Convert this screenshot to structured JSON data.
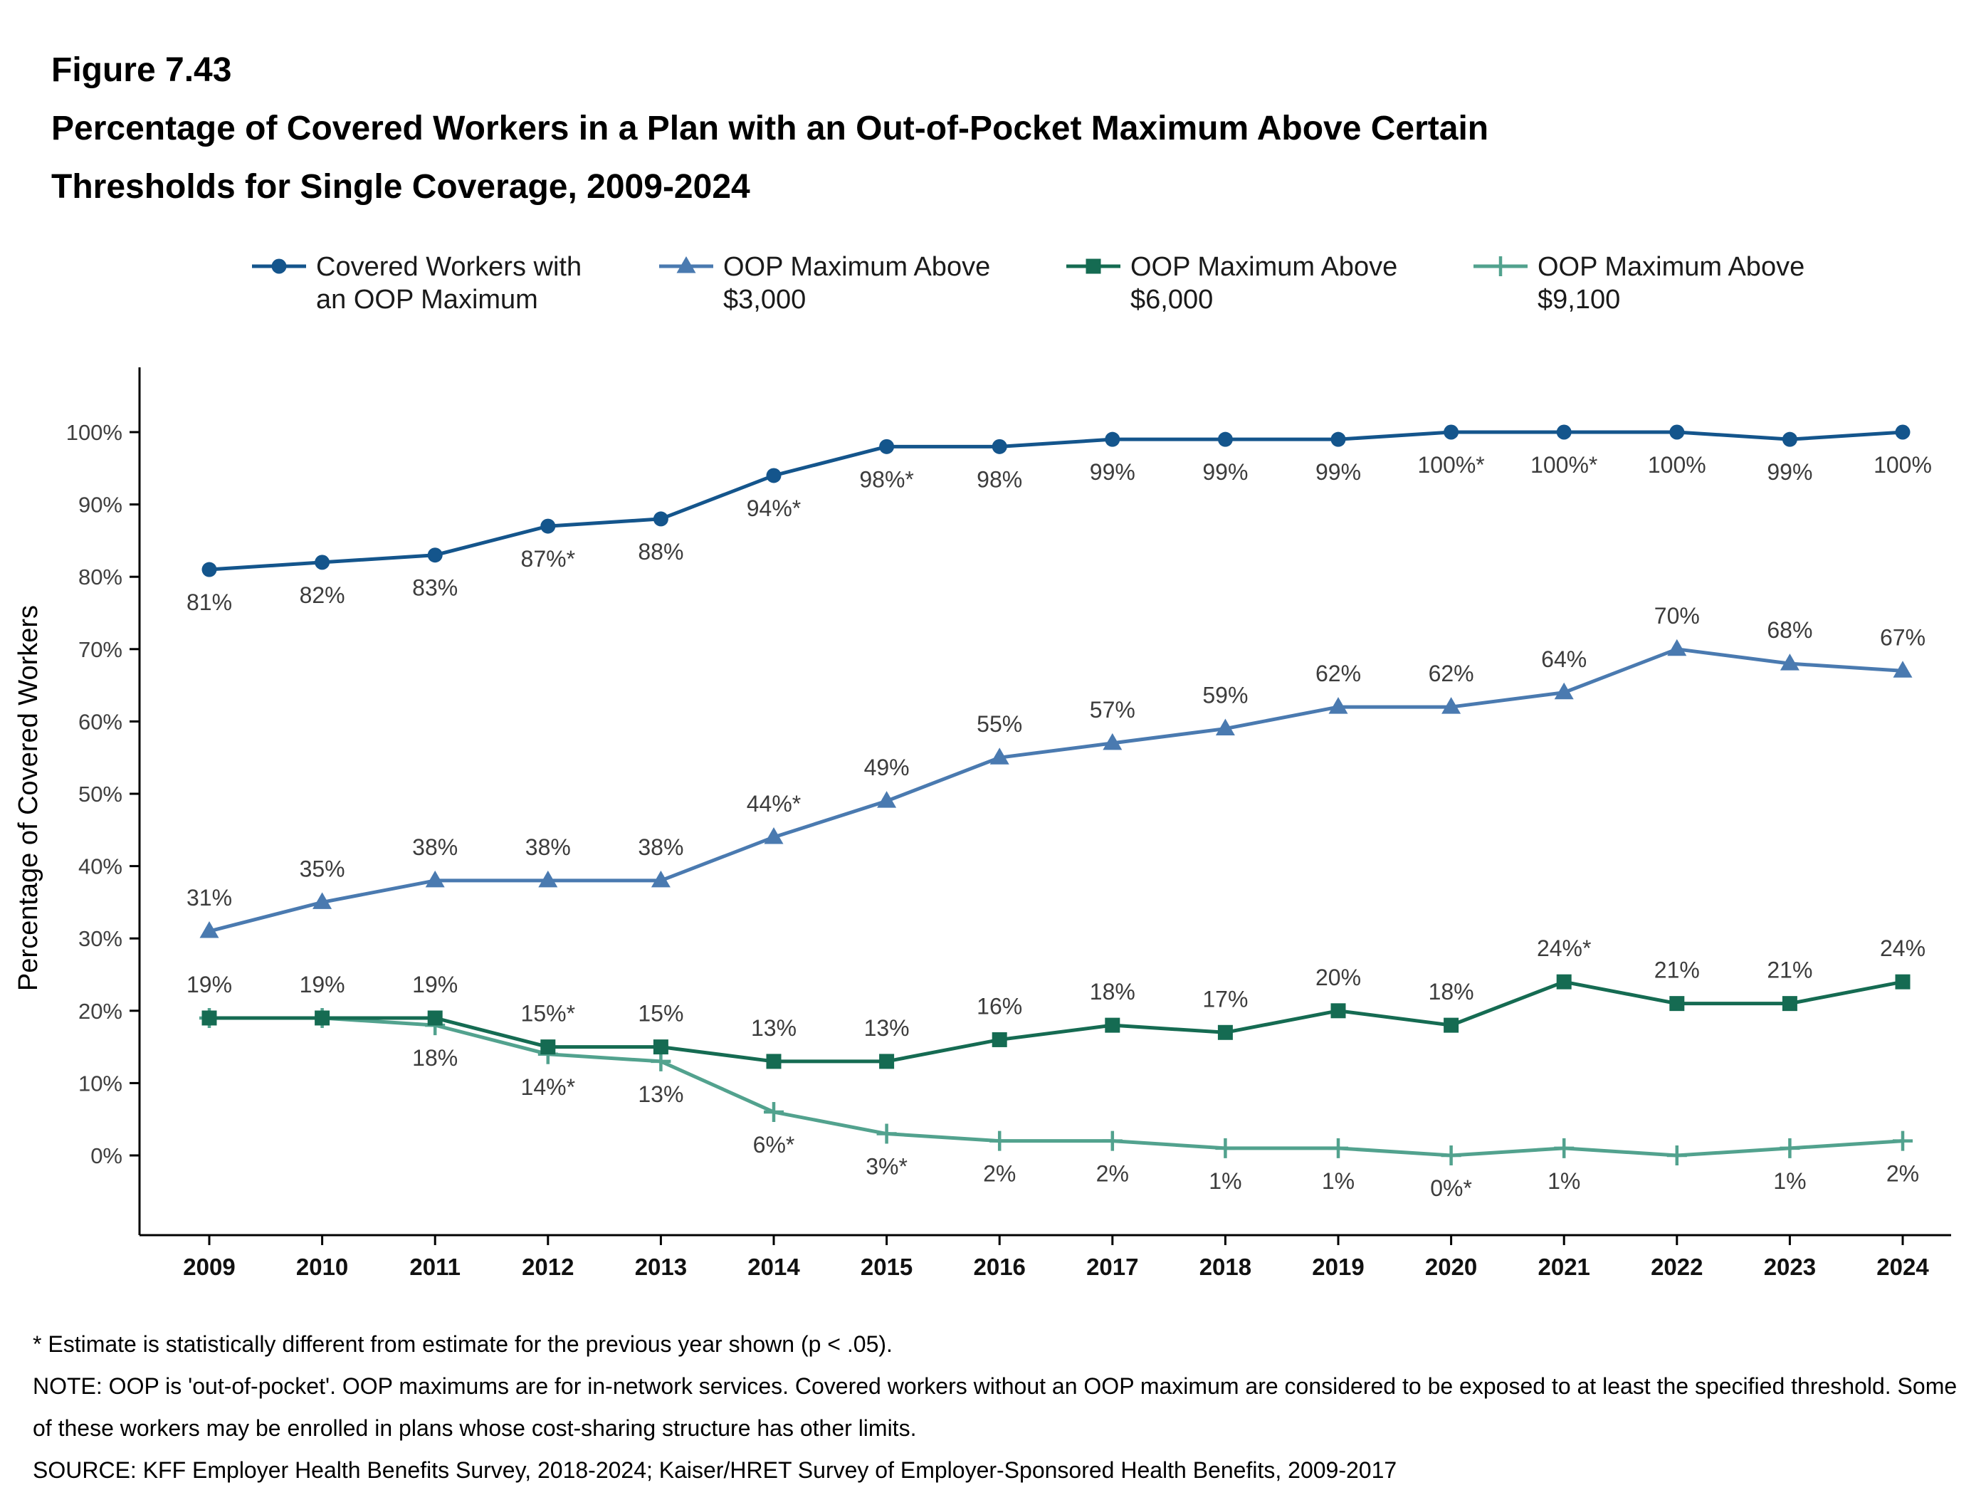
{
  "figure_label": "Figure 7.43",
  "title_line1": "Percentage of Covered Workers in a Plan with an Out-of-Pocket Maximum Above Certain",
  "title_line2": "Thresholds for Single Coverage, 2009-2024",
  "chart_data": {
    "type": "line",
    "x": [
      "2009",
      "2010",
      "2011",
      "2012",
      "2013",
      "2014",
      "2015",
      "2016",
      "2017",
      "2018",
      "2019",
      "2020",
      "2021",
      "2022",
      "2023",
      "2024"
    ],
    "ylabel": "Percentage of Covered Workers",
    "ylim": [
      0,
      100
    ],
    "ytick_labels": [
      "0%",
      "10%",
      "20%",
      "30%",
      "40%",
      "50%",
      "60%",
      "70%",
      "80%",
      "90%",
      "100%"
    ],
    "grid": false,
    "legend_position": "top",
    "series": [
      {
        "name": "Covered Workers with an OOP Maximum",
        "legend_line1": "Covered Workers with",
        "legend_line2": "an OOP Maximum",
        "color": "#14558c",
        "marker": "circle",
        "label_side": "below",
        "values": [
          81,
          82,
          83,
          87,
          88,
          94,
          98,
          98,
          99,
          99,
          99,
          100,
          100,
          100,
          99,
          100
        ],
        "labels": [
          "81%",
          "82%",
          "83%",
          "87%*",
          "88%",
          "94%*",
          "98%*",
          "98%",
          "99%",
          "99%",
          "99%",
          "100%*",
          "100%*",
          "100%",
          "99%",
          "100%"
        ]
      },
      {
        "name": "OOP Maximum Above $3,000",
        "legend_line1": "OOP Maximum Above",
        "legend_line2": "$3,000",
        "color": "#4a7ab0",
        "marker": "triangle",
        "label_side": "above",
        "values": [
          31,
          35,
          38,
          38,
          38,
          44,
          49,
          55,
          57,
          59,
          62,
          62,
          64,
          70,
          68,
          67
        ],
        "labels": [
          "31%",
          "35%",
          "38%",
          "38%",
          "38%",
          "44%*",
          "49%",
          "55%",
          "57%",
          "59%",
          "62%",
          "62%",
          "64%",
          "70%",
          "68%",
          "67%"
        ]
      },
      {
        "name": "OOP Maximum Above $6,000",
        "legend_line1": "OOP Maximum Above",
        "legend_line2": "$6,000",
        "color": "#156b52",
        "marker": "square",
        "label_side": "above",
        "values": [
          19,
          19,
          19,
          15,
          15,
          13,
          13,
          16,
          18,
          17,
          20,
          18,
          24,
          21,
          21,
          24
        ],
        "labels": [
          "19%",
          "19%",
          "19%",
          "15%*",
          "15%",
          "13%",
          "13%",
          "16%",
          "18%",
          "17%",
          "20%",
          "18%",
          "24%*",
          "21%",
          "21%",
          "24%"
        ]
      },
      {
        "name": "OOP Maximum Above $9,100",
        "legend_line1": "OOP Maximum Above",
        "legend_line2": "$9,100",
        "color": "#52a28e",
        "marker": "plus",
        "label_side": "below",
        "values": [
          19,
          19,
          18,
          14,
          13,
          6,
          3,
          2,
          2,
          1,
          1,
          0,
          1,
          0,
          1,
          2
        ],
        "labels": [
          "",
          "",
          "18%",
          "14%*",
          "13%",
          "6%*",
          "3%*",
          "2%",
          "2%",
          "1%",
          "1%",
          "0%*",
          "1%",
          "",
          "1%",
          "2%"
        ]
      }
    ]
  },
  "footnotes": {
    "star_note": "* Estimate is statistically different from estimate for the previous year shown (p < .05).",
    "note": "NOTE: OOP is 'out-of-pocket'. OOP maximums are for in-network services. Covered workers without an OOP maximum are considered to be exposed to at least the specified threshold. Some of these workers may be enrolled in plans whose cost-sharing structure has other limits.",
    "source": "SOURCE: KFF Employer Health Benefits Survey, 2018-2024; Kaiser/HRET Survey of Employer-Sponsored Health Benefits, 2009-2017"
  }
}
